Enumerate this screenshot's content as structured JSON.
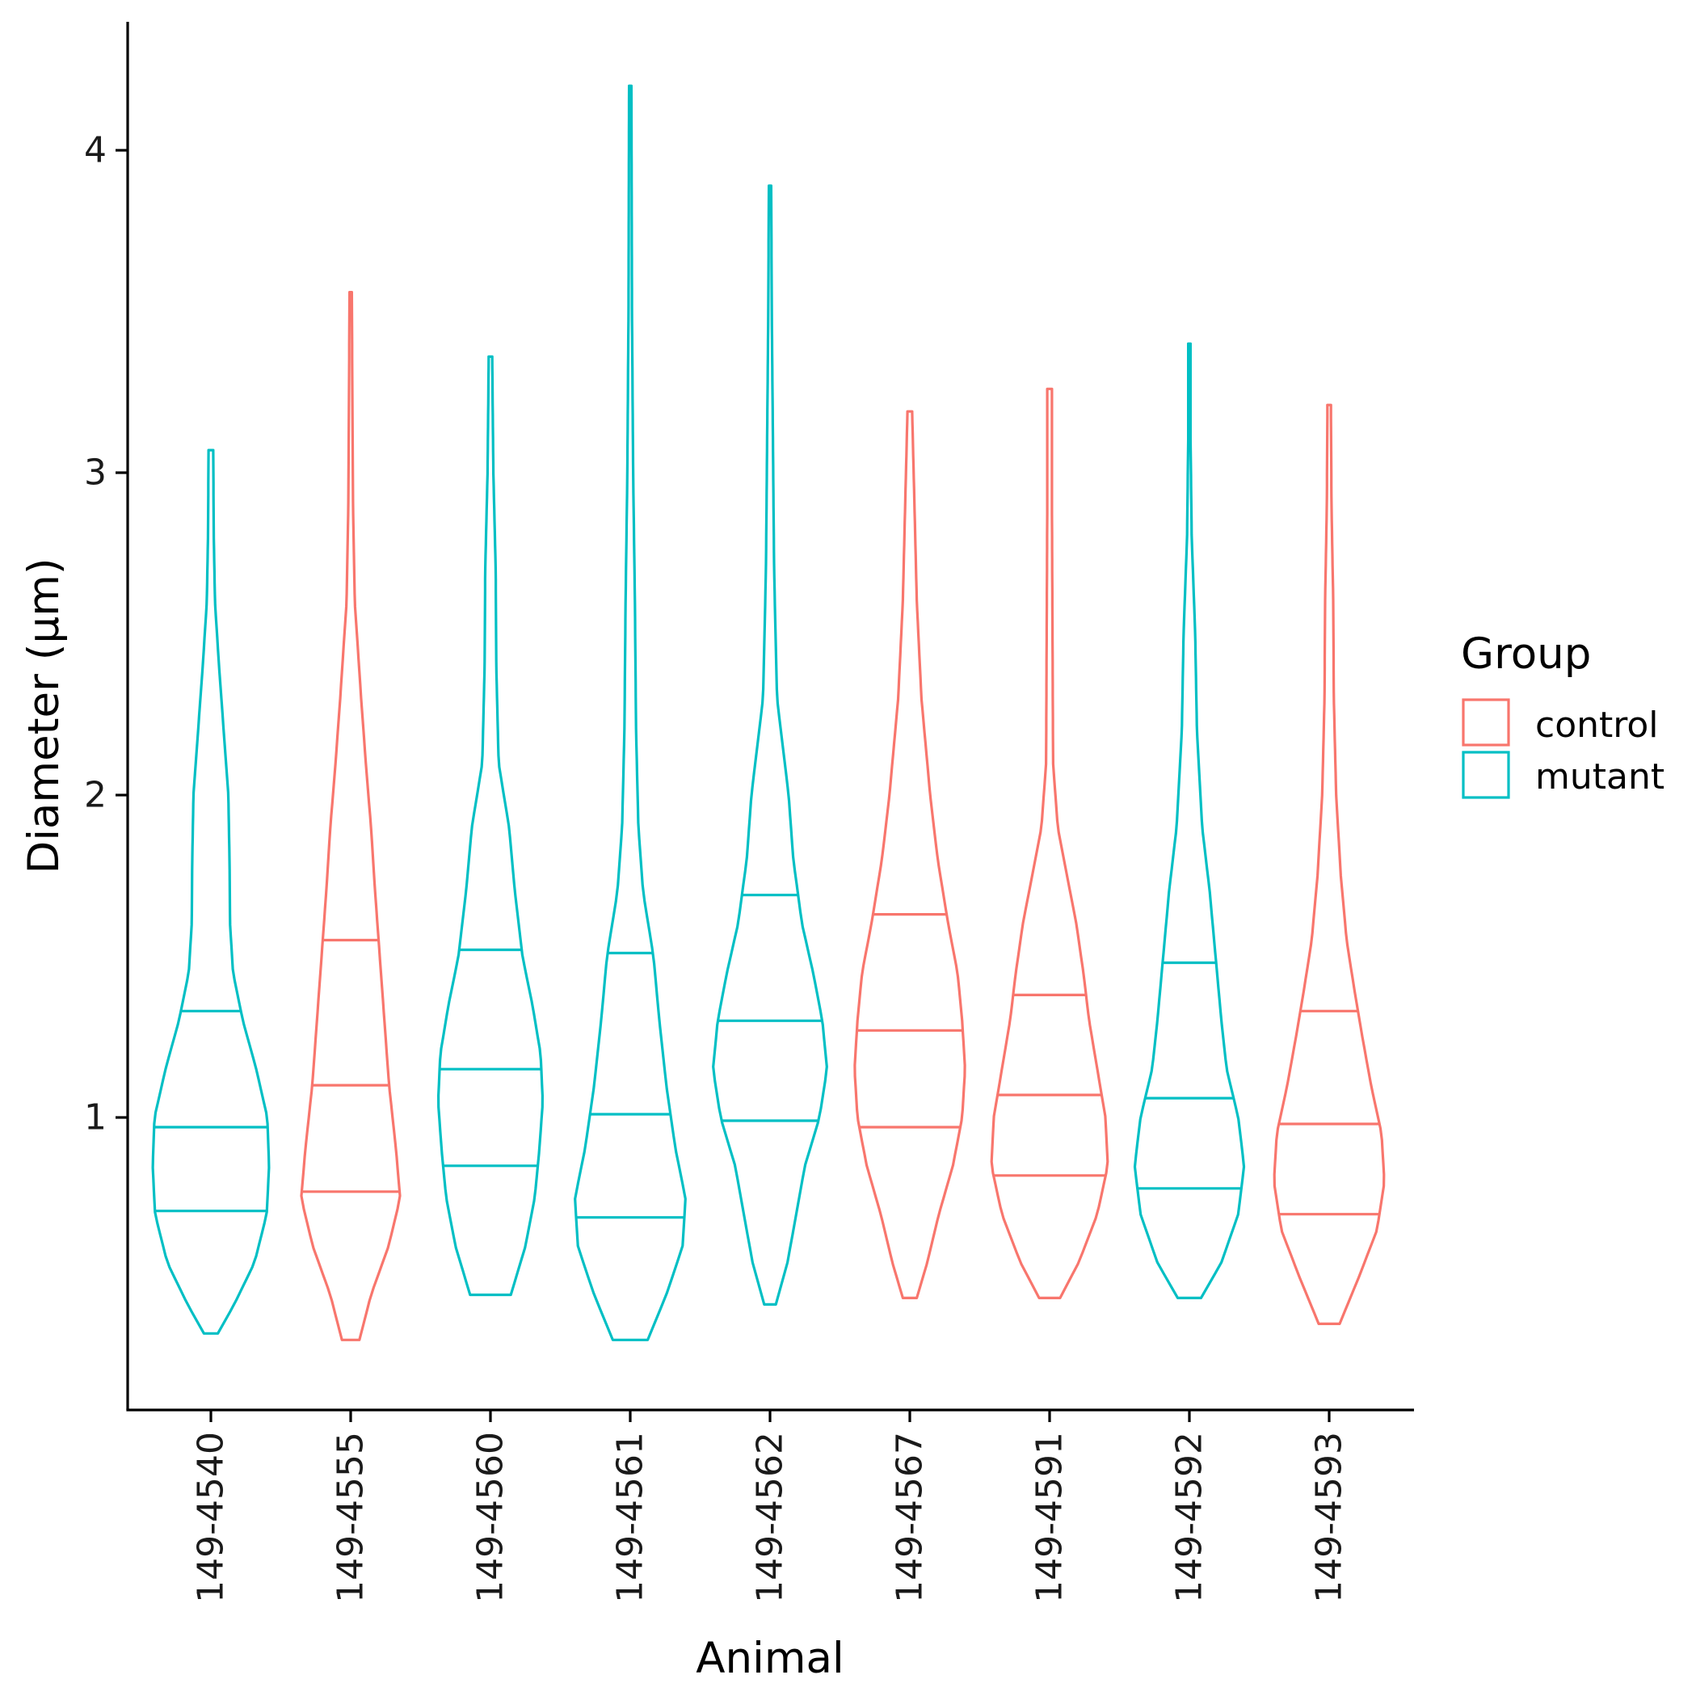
{
  "chart_data": {
    "type": "violin",
    "title": "",
    "xlabel": "Animal",
    "ylabel": "Diameter (µm)",
    "ylim": [
      0.12,
      4.4
    ],
    "yticks": [
      1,
      2,
      3,
      4
    ],
    "grid": false,
    "legend": {
      "title": "Group",
      "placement": "right",
      "entries": [
        {
          "label": "control",
          "color": "#F8766D"
        },
        {
          "label": "mutant",
          "color": "#00BFC4"
        }
      ]
    },
    "quantiles_shown": [
      0.25,
      0.5,
      0.75
    ],
    "series": [
      {
        "animal": "149-4540",
        "group": "mutant",
        "min": 0.33,
        "max": 3.07,
        "q1": 0.71,
        "median": 0.97,
        "q3": 1.33,
        "profile": [
          [
            0.33,
            0.12
          ],
          [
            0.42,
            0.4
          ],
          [
            0.55,
            0.75
          ],
          [
            0.7,
            0.96
          ],
          [
            0.85,
            1.0
          ],
          [
            1.0,
            0.97
          ],
          [
            1.15,
            0.78
          ],
          [
            1.3,
            0.55
          ],
          [
            1.45,
            0.38
          ],
          [
            1.6,
            0.33
          ],
          [
            1.8,
            0.32
          ],
          [
            2.0,
            0.3
          ],
          [
            2.2,
            0.22
          ],
          [
            2.4,
            0.14
          ],
          [
            2.6,
            0.07
          ],
          [
            2.8,
            0.05
          ],
          [
            3.07,
            0.04
          ]
        ]
      },
      {
        "animal": "149-4555",
        "group": "control",
        "min": 0.31,
        "max": 3.56,
        "q1": 0.77,
        "median": 1.1,
        "q3": 1.55,
        "profile": [
          [
            0.31,
            0.15
          ],
          [
            0.45,
            0.35
          ],
          [
            0.6,
            0.65
          ],
          [
            0.75,
            0.85
          ],
          [
            0.9,
            0.78
          ],
          [
            1.1,
            0.66
          ],
          [
            1.3,
            0.58
          ],
          [
            1.5,
            0.5
          ],
          [
            1.7,
            0.42
          ],
          [
            1.9,
            0.35
          ],
          [
            2.1,
            0.26
          ],
          [
            2.3,
            0.18
          ],
          [
            2.6,
            0.07
          ],
          [
            2.9,
            0.04
          ],
          [
            3.2,
            0.03
          ],
          [
            3.56,
            0.02
          ]
        ]
      },
      {
        "animal": "149-4560",
        "group": "mutant",
        "min": 0.45,
        "max": 3.36,
        "q1": 0.85,
        "median": 1.15,
        "q3": 1.52,
        "profile": [
          [
            0.45,
            0.35
          ],
          [
            0.6,
            0.6
          ],
          [
            0.75,
            0.76
          ],
          [
            0.9,
            0.84
          ],
          [
            1.05,
            0.9
          ],
          [
            1.2,
            0.86
          ],
          [
            1.35,
            0.72
          ],
          [
            1.5,
            0.55
          ],
          [
            1.7,
            0.42
          ],
          [
            1.9,
            0.32
          ],
          [
            2.1,
            0.14
          ],
          [
            2.4,
            0.1
          ],
          [
            2.7,
            0.09
          ],
          [
            3.0,
            0.05
          ],
          [
            3.36,
            0.03
          ]
        ]
      },
      {
        "animal": "149-4561",
        "group": "mutant",
        "min": 0.31,
        "max": 4.2,
        "q1": 0.69,
        "median": 1.01,
        "q3": 1.51,
        "profile": [
          [
            0.31,
            0.3
          ],
          [
            0.45,
            0.62
          ],
          [
            0.6,
            0.9
          ],
          [
            0.75,
            0.95
          ],
          [
            0.9,
            0.78
          ],
          [
            1.1,
            0.62
          ],
          [
            1.3,
            0.5
          ],
          [
            1.5,
            0.4
          ],
          [
            1.7,
            0.22
          ],
          [
            1.9,
            0.14
          ],
          [
            2.2,
            0.1
          ],
          [
            2.6,
            0.08
          ],
          [
            3.0,
            0.05
          ],
          [
            3.5,
            0.03
          ],
          [
            4.2,
            0.02
          ]
        ]
      },
      {
        "animal": "149-4562",
        "group": "mutant",
        "min": 0.42,
        "max": 3.89,
        "q1": 0.99,
        "median": 1.3,
        "q3": 1.69,
        "profile": [
          [
            0.42,
            0.1
          ],
          [
            0.55,
            0.3
          ],
          [
            0.7,
            0.45
          ],
          [
            0.85,
            0.6
          ],
          [
            1.0,
            0.85
          ],
          [
            1.15,
            0.98
          ],
          [
            1.3,
            0.9
          ],
          [
            1.45,
            0.74
          ],
          [
            1.6,
            0.55
          ],
          [
            1.8,
            0.4
          ],
          [
            2.0,
            0.32
          ],
          [
            2.3,
            0.12
          ],
          [
            2.7,
            0.07
          ],
          [
            3.1,
            0.05
          ],
          [
            3.5,
            0.03
          ],
          [
            3.89,
            0.02
          ]
        ]
      },
      {
        "animal": "149-4567",
        "group": "control",
        "min": 0.44,
        "max": 3.19,
        "q1": 0.97,
        "median": 1.27,
        "q3": 1.63,
        "profile": [
          [
            0.44,
            0.12
          ],
          [
            0.55,
            0.3
          ],
          [
            0.7,
            0.5
          ],
          [
            0.85,
            0.74
          ],
          [
            1.0,
            0.9
          ],
          [
            1.15,
            0.95
          ],
          [
            1.3,
            0.9
          ],
          [
            1.45,
            0.82
          ],
          [
            1.6,
            0.66
          ],
          [
            1.8,
            0.48
          ],
          [
            2.0,
            0.35
          ],
          [
            2.3,
            0.2
          ],
          [
            2.6,
            0.12
          ],
          [
            2.9,
            0.08
          ],
          [
            3.19,
            0.04
          ]
        ]
      },
      {
        "animal": "149-4591",
        "group": "control",
        "min": 0.44,
        "max": 3.26,
        "q1": 0.82,
        "median": 1.07,
        "q3": 1.38,
        "profile": [
          [
            0.44,
            0.18
          ],
          [
            0.55,
            0.5
          ],
          [
            0.7,
            0.82
          ],
          [
            0.85,
            1.0
          ],
          [
            1.0,
            0.96
          ],
          [
            1.15,
            0.82
          ],
          [
            1.3,
            0.68
          ],
          [
            1.45,
            0.58
          ],
          [
            1.6,
            0.46
          ],
          [
            1.75,
            0.3
          ],
          [
            1.9,
            0.14
          ],
          [
            2.1,
            0.06
          ],
          [
            2.5,
            0.05
          ],
          [
            2.9,
            0.04
          ],
          [
            3.26,
            0.04
          ]
        ]
      },
      {
        "animal": "149-4592",
        "group": "mutant",
        "min": 0.44,
        "max": 3.4,
        "q1": 0.78,
        "median": 1.06,
        "q3": 1.48,
        "profile": [
          [
            0.44,
            0.2
          ],
          [
            0.55,
            0.55
          ],
          [
            0.7,
            0.84
          ],
          [
            0.85,
            0.94
          ],
          [
            1.0,
            0.84
          ],
          [
            1.15,
            0.64
          ],
          [
            1.3,
            0.55
          ],
          [
            1.5,
            0.45
          ],
          [
            1.7,
            0.35
          ],
          [
            1.9,
            0.22
          ],
          [
            2.2,
            0.13
          ],
          [
            2.5,
            0.1
          ],
          [
            2.8,
            0.04
          ],
          [
            3.1,
            0.02
          ],
          [
            3.4,
            0.02
          ]
        ]
      },
      {
        "animal": "149-4593",
        "group": "control",
        "min": 0.36,
        "max": 3.21,
        "q1": 0.7,
        "median": 0.98,
        "q3": 1.33,
        "profile": [
          [
            0.36,
            0.18
          ],
          [
            0.5,
            0.5
          ],
          [
            0.65,
            0.82
          ],
          [
            0.8,
            0.95
          ],
          [
            0.95,
            0.9
          ],
          [
            1.1,
            0.72
          ],
          [
            1.25,
            0.57
          ],
          [
            1.4,
            0.43
          ],
          [
            1.55,
            0.3
          ],
          [
            1.75,
            0.2
          ],
          [
            2.0,
            0.12
          ],
          [
            2.3,
            0.08
          ],
          [
            2.6,
            0.07
          ],
          [
            2.9,
            0.04
          ],
          [
            3.21,
            0.03
          ]
        ]
      }
    ]
  }
}
